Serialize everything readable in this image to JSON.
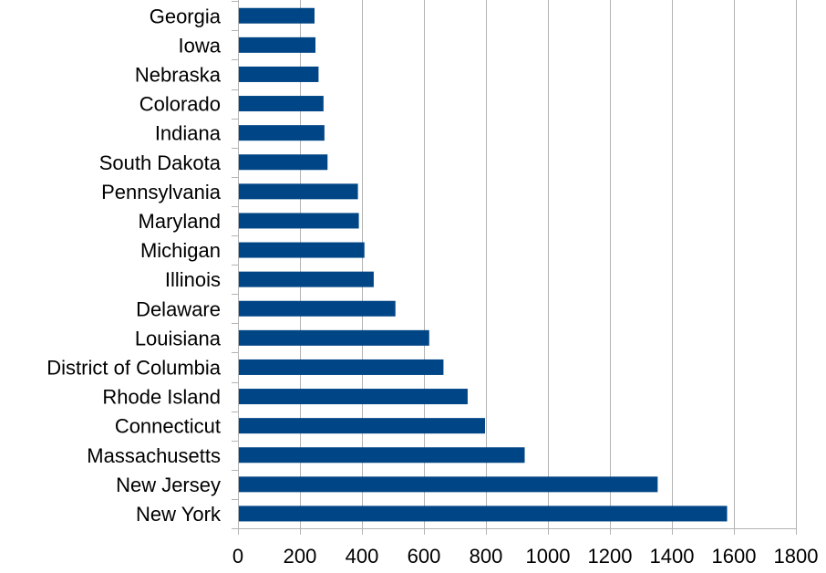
{
  "chart_data": {
    "type": "bar",
    "orientation": "horizontal",
    "categories": [
      "Georgia",
      "Iowa",
      "Nebraska",
      "Colorado",
      "Indiana",
      "South Dakota",
      "Pennsylvania",
      "Maryland",
      "Michigan",
      "Illinois",
      "Delaware",
      "Louisiana",
      "District of Columbia",
      "Rhode Island",
      "Connecticut",
      "Massachusetts",
      "New Jersey",
      "New York"
    ],
    "values": [
      247,
      250,
      260,
      276,
      279,
      289,
      387,
      390,
      408,
      438,
      508,
      617,
      663,
      741,
      797,
      925,
      1354,
      1578
    ],
    "xlim": [
      0,
      1800
    ],
    "xticks": [
      0,
      200,
      400,
      600,
      800,
      1000,
      1200,
      1400,
      1600,
      1800
    ],
    "grid": true,
    "bar_color": "#004586",
    "grid_color": "#b3b3b3",
    "title": "",
    "xlabel": "",
    "ylabel": ""
  }
}
